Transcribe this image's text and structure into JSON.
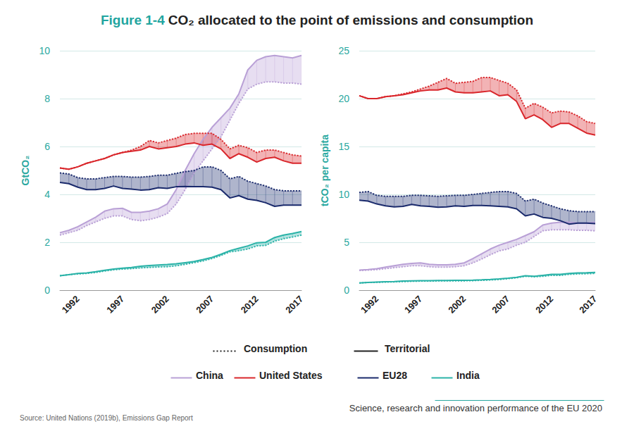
{
  "title": {
    "prefix": "Figure 1-4",
    "text": "CO₂ allocated to the point of emissions and consumption"
  },
  "line_legend": [
    {
      "label": "Consumption",
      "line_style": "dotted"
    },
    {
      "label": "Territorial",
      "line_style": "solid"
    }
  ],
  "footer": "Science, research and innovation performance of the EU 2020",
  "source": "Source: United Nations (2019b), Emissions Gap Report",
  "chart_data": [
    {
      "type": "line",
      "y_label": "GtCO₂",
      "x": [
        1990,
        1991,
        1992,
        1993,
        1994,
        1995,
        1996,
        1997,
        1998,
        1999,
        2000,
        2001,
        2002,
        2003,
        2004,
        2005,
        2006,
        2007,
        2008,
        2009,
        2010,
        2011,
        2012,
        2013,
        2014,
        2015,
        2016,
        2017
      ],
      "xlim": [
        1990,
        2017
      ],
      "xticks": [
        1992,
        1997,
        2002,
        2007,
        2012,
        2017
      ],
      "ylim": [
        0,
        10
      ],
      "yticks": [
        0,
        2,
        4,
        6,
        8,
        10
      ],
      "grid": true,
      "series": [
        {
          "name": "China",
          "color": "#b9a0d6",
          "line_style": "solid",
          "values": [
            2.4,
            2.5,
            2.65,
            2.85,
            3.05,
            3.3,
            3.4,
            3.42,
            3.25,
            3.25,
            3.3,
            3.4,
            3.6,
            4.2,
            5.0,
            5.7,
            6.3,
            6.8,
            7.2,
            7.6,
            8.2,
            9.2,
            9.6,
            9.75,
            9.8,
            9.75,
            9.7,
            9.8
          ]
        },
        {
          "name": "China",
          "color": "#b9a0d6",
          "line_style": "dotted",
          "values": [
            2.3,
            2.4,
            2.5,
            2.7,
            2.85,
            3.0,
            3.1,
            3.1,
            2.95,
            2.9,
            2.95,
            3.05,
            3.2,
            3.6,
            4.2,
            4.9,
            5.4,
            5.9,
            6.4,
            7.1,
            7.8,
            8.4,
            8.6,
            8.7,
            8.7,
            8.65,
            8.65,
            8.6
          ]
        },
        {
          "name": "United States",
          "color": "#d9262b",
          "line_style": "solid",
          "values": [
            5.1,
            5.05,
            5.15,
            5.3,
            5.4,
            5.5,
            5.65,
            5.75,
            5.8,
            5.85,
            6.0,
            5.9,
            5.95,
            6.0,
            6.1,
            6.15,
            6.05,
            6.1,
            5.9,
            5.5,
            5.7,
            5.55,
            5.35,
            5.5,
            5.55,
            5.4,
            5.3,
            5.3
          ]
        },
        {
          "name": "United States",
          "color": "#d9262b",
          "line_style": "dotted",
          "values": [
            5.1,
            5.05,
            5.15,
            5.3,
            5.4,
            5.5,
            5.65,
            5.75,
            5.85,
            6.0,
            6.25,
            6.15,
            6.25,
            6.35,
            6.5,
            6.55,
            6.55,
            6.55,
            6.3,
            5.9,
            6.05,
            5.95,
            5.75,
            5.85,
            5.85,
            5.75,
            5.65,
            5.6
          ]
        },
        {
          "name": "EU28",
          "color": "#1a2a6c",
          "line_style": "solid",
          "values": [
            4.5,
            4.45,
            4.3,
            4.2,
            4.2,
            4.25,
            4.35,
            4.25,
            4.22,
            4.18,
            4.2,
            4.28,
            4.25,
            4.32,
            4.33,
            4.32,
            4.32,
            4.3,
            4.2,
            3.85,
            3.95,
            3.8,
            3.75,
            3.65,
            3.5,
            3.55,
            3.55,
            3.55
          ]
        },
        {
          "name": "EU28",
          "color": "#1a2a6c",
          "line_style": "dotted",
          "values": [
            4.9,
            4.85,
            4.7,
            4.65,
            4.65,
            4.7,
            4.75,
            4.75,
            4.72,
            4.72,
            4.75,
            4.8,
            4.8,
            4.88,
            4.95,
            5.0,
            5.15,
            5.15,
            5.0,
            4.65,
            4.75,
            4.55,
            4.45,
            4.35,
            4.2,
            4.15,
            4.15,
            4.15
          ]
        },
        {
          "name": "India",
          "color": "#2bb3a8",
          "line_style": "solid",
          "values": [
            0.6,
            0.65,
            0.7,
            0.72,
            0.77,
            0.83,
            0.88,
            0.92,
            0.95,
            1.0,
            1.03,
            1.05,
            1.07,
            1.1,
            1.15,
            1.2,
            1.28,
            1.37,
            1.5,
            1.65,
            1.75,
            1.85,
            1.98,
            2.0,
            2.2,
            2.3,
            2.37,
            2.45
          ]
        },
        {
          "name": "India",
          "color": "#2bb3a8",
          "line_style": "dotted",
          "values": [
            0.6,
            0.65,
            0.68,
            0.7,
            0.74,
            0.8,
            0.85,
            0.88,
            0.9,
            0.93,
            0.95,
            0.97,
            0.98,
            1.02,
            1.08,
            1.15,
            1.22,
            1.32,
            1.45,
            1.6,
            1.65,
            1.72,
            1.85,
            1.87,
            2.05,
            2.15,
            2.22,
            2.3
          ]
        }
      ]
    },
    {
      "type": "line",
      "y_label": "tCO₂ per capita",
      "x": [
        1990,
        1991,
        1992,
        1993,
        1994,
        1995,
        1996,
        1997,
        1998,
        1999,
        2000,
        2001,
        2002,
        2003,
        2004,
        2005,
        2006,
        2007,
        2008,
        2009,
        2010,
        2011,
        2012,
        2013,
        2014,
        2015,
        2016,
        2017
      ],
      "xlim": [
        1990,
        2017
      ],
      "xticks": [
        1992,
        1997,
        2002,
        2007,
        2012,
        2017
      ],
      "ylim": [
        0,
        25
      ],
      "yticks": [
        0,
        5,
        10,
        15,
        20,
        25
      ],
      "grid": true,
      "series": [
        {
          "name": "China",
          "color": "#b9a0d6",
          "line_style": "solid",
          "values": [
            2.1,
            2.15,
            2.25,
            2.4,
            2.55,
            2.7,
            2.8,
            2.85,
            2.7,
            2.65,
            2.65,
            2.7,
            2.85,
            3.3,
            3.8,
            4.3,
            4.7,
            5.0,
            5.3,
            5.7,
            6.1,
            6.8,
            7.0,
            7.1,
            7.1,
            7.0,
            7.0,
            7.1
          ]
        },
        {
          "name": "China",
          "color": "#b9a0d6",
          "line_style": "dotted",
          "values": [
            2.05,
            2.1,
            2.15,
            2.25,
            2.35,
            2.45,
            2.55,
            2.55,
            2.45,
            2.4,
            2.4,
            2.45,
            2.55,
            2.85,
            3.25,
            3.7,
            4.1,
            4.3,
            4.7,
            5.0,
            5.6,
            6.2,
            6.3,
            6.3,
            6.3,
            6.25,
            6.25,
            6.2
          ]
        },
        {
          "name": "United States",
          "color": "#d9262b",
          "line_style": "solid",
          "values": [
            20.3,
            20.0,
            20.0,
            20.2,
            20.3,
            20.4,
            20.6,
            20.8,
            20.9,
            20.9,
            21.1,
            20.7,
            20.6,
            20.6,
            20.7,
            20.8,
            20.3,
            20.4,
            19.7,
            17.9,
            18.3,
            17.8,
            17.0,
            17.4,
            17.4,
            16.9,
            16.4,
            16.2
          ]
        },
        {
          "name": "United States",
          "color": "#d9262b",
          "line_style": "dotted",
          "values": [
            20.3,
            20.0,
            20.0,
            20.2,
            20.3,
            20.5,
            20.7,
            21.0,
            21.3,
            21.7,
            22.1,
            21.6,
            21.7,
            21.8,
            22.2,
            22.2,
            21.9,
            21.6,
            20.9,
            19.0,
            19.5,
            19.1,
            18.5,
            18.7,
            18.6,
            18.2,
            17.6,
            17.4
          ]
        },
        {
          "name": "EU28",
          "color": "#1a2a6c",
          "line_style": "solid",
          "values": [
            9.4,
            9.3,
            9.0,
            8.8,
            8.7,
            8.75,
            8.95,
            8.8,
            8.75,
            8.65,
            8.7,
            8.8,
            8.75,
            8.85,
            8.85,
            8.8,
            8.75,
            8.7,
            8.5,
            7.75,
            7.95,
            7.6,
            7.5,
            7.25,
            6.9,
            7.0,
            7.0,
            6.95
          ]
        },
        {
          "name": "EU28",
          "color": "#1a2a6c",
          "line_style": "dotted",
          "values": [
            10.2,
            10.3,
            9.9,
            9.8,
            9.8,
            9.8,
            9.9,
            9.9,
            9.85,
            9.8,
            9.85,
            9.9,
            9.9,
            10.0,
            10.1,
            10.2,
            10.3,
            10.3,
            10.1,
            9.3,
            9.5,
            9.1,
            8.8,
            8.5,
            8.3,
            8.2,
            8.2,
            8.2
          ]
        },
        {
          "name": "India",
          "color": "#2bb3a8",
          "line_style": "solid",
          "values": [
            0.75,
            0.8,
            0.85,
            0.88,
            0.9,
            0.95,
            0.98,
            1.0,
            1.0,
            1.02,
            1.02,
            1.03,
            1.03,
            1.05,
            1.08,
            1.12,
            1.18,
            1.25,
            1.35,
            1.5,
            1.45,
            1.55,
            1.65,
            1.65,
            1.75,
            1.8,
            1.82,
            1.85
          ]
        },
        {
          "name": "India",
          "color": "#2bb3a8",
          "line_style": "dotted",
          "values": [
            0.75,
            0.8,
            0.82,
            0.85,
            0.87,
            0.9,
            0.93,
            0.95,
            0.95,
            0.97,
            0.97,
            0.98,
            0.98,
            1.0,
            1.03,
            1.07,
            1.12,
            1.2,
            1.3,
            1.45,
            1.4,
            1.45,
            1.55,
            1.55,
            1.65,
            1.7,
            1.72,
            1.75
          ]
        }
      ]
    }
  ]
}
